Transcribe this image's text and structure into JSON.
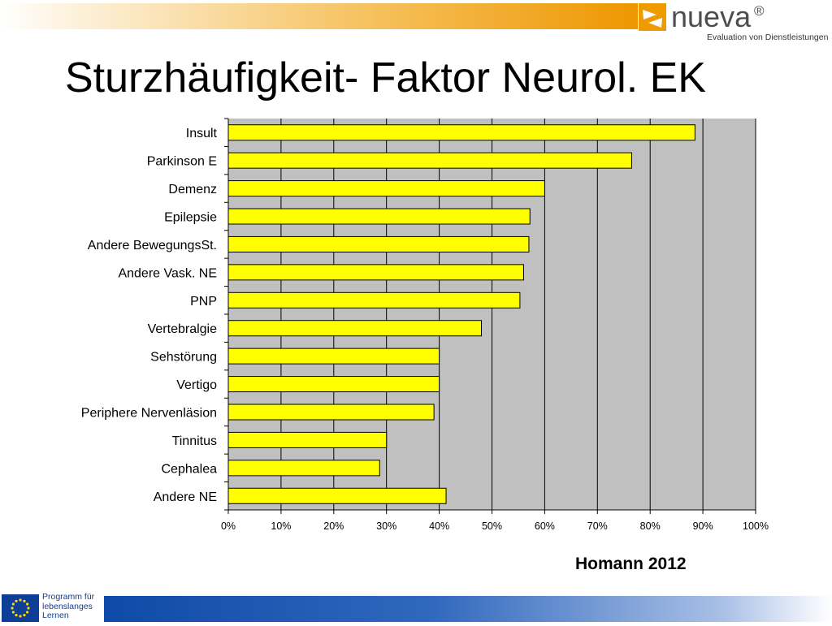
{
  "title": "Sturzhäufigkeit- Faktor Neurol. EK",
  "logo": {
    "name": "nueva",
    "registered_mark": "®",
    "tagline": "Evaluation von Dienstleistungen"
  },
  "source": "Homann 2012",
  "eu_program": {
    "line1": "Programm für",
    "line2": "lebenslanges",
    "line3": "Lernen"
  },
  "colors": {
    "bar_fill": "#ffff00",
    "bar_stroke": "#000000",
    "plot_background": "#c0c0c0",
    "accent_orange": "#ef9a00",
    "eu_blue": "#0e3d97"
  },
  "chart_data": {
    "type": "bar",
    "orientation": "horizontal",
    "categories": [
      "Insult",
      "Parkinson E",
      "Demenz",
      "Epilepsie",
      "Andere BewegungsSt.",
      "Andere Vask. NE",
      "PNP",
      "Vertebralgie",
      "Sehstörung",
      "Vertigo",
      "Periphere Nervenläsion",
      "Tinnitus",
      "Cephalea",
      "Andere NE"
    ],
    "values": [
      88.5,
      76.5,
      60,
      57.2,
      57,
      56,
      55.3,
      48,
      40,
      40,
      39,
      30,
      28.7,
      41.3
    ],
    "xlim": [
      0,
      100
    ],
    "xticks": [
      "0%",
      "10%",
      "20%",
      "30%",
      "40%",
      "50%",
      "60%",
      "70%",
      "80%",
      "90%",
      "100%"
    ],
    "grid": true,
    "legend": "none",
    "title": "",
    "xlabel": "",
    "ylabel": ""
  }
}
